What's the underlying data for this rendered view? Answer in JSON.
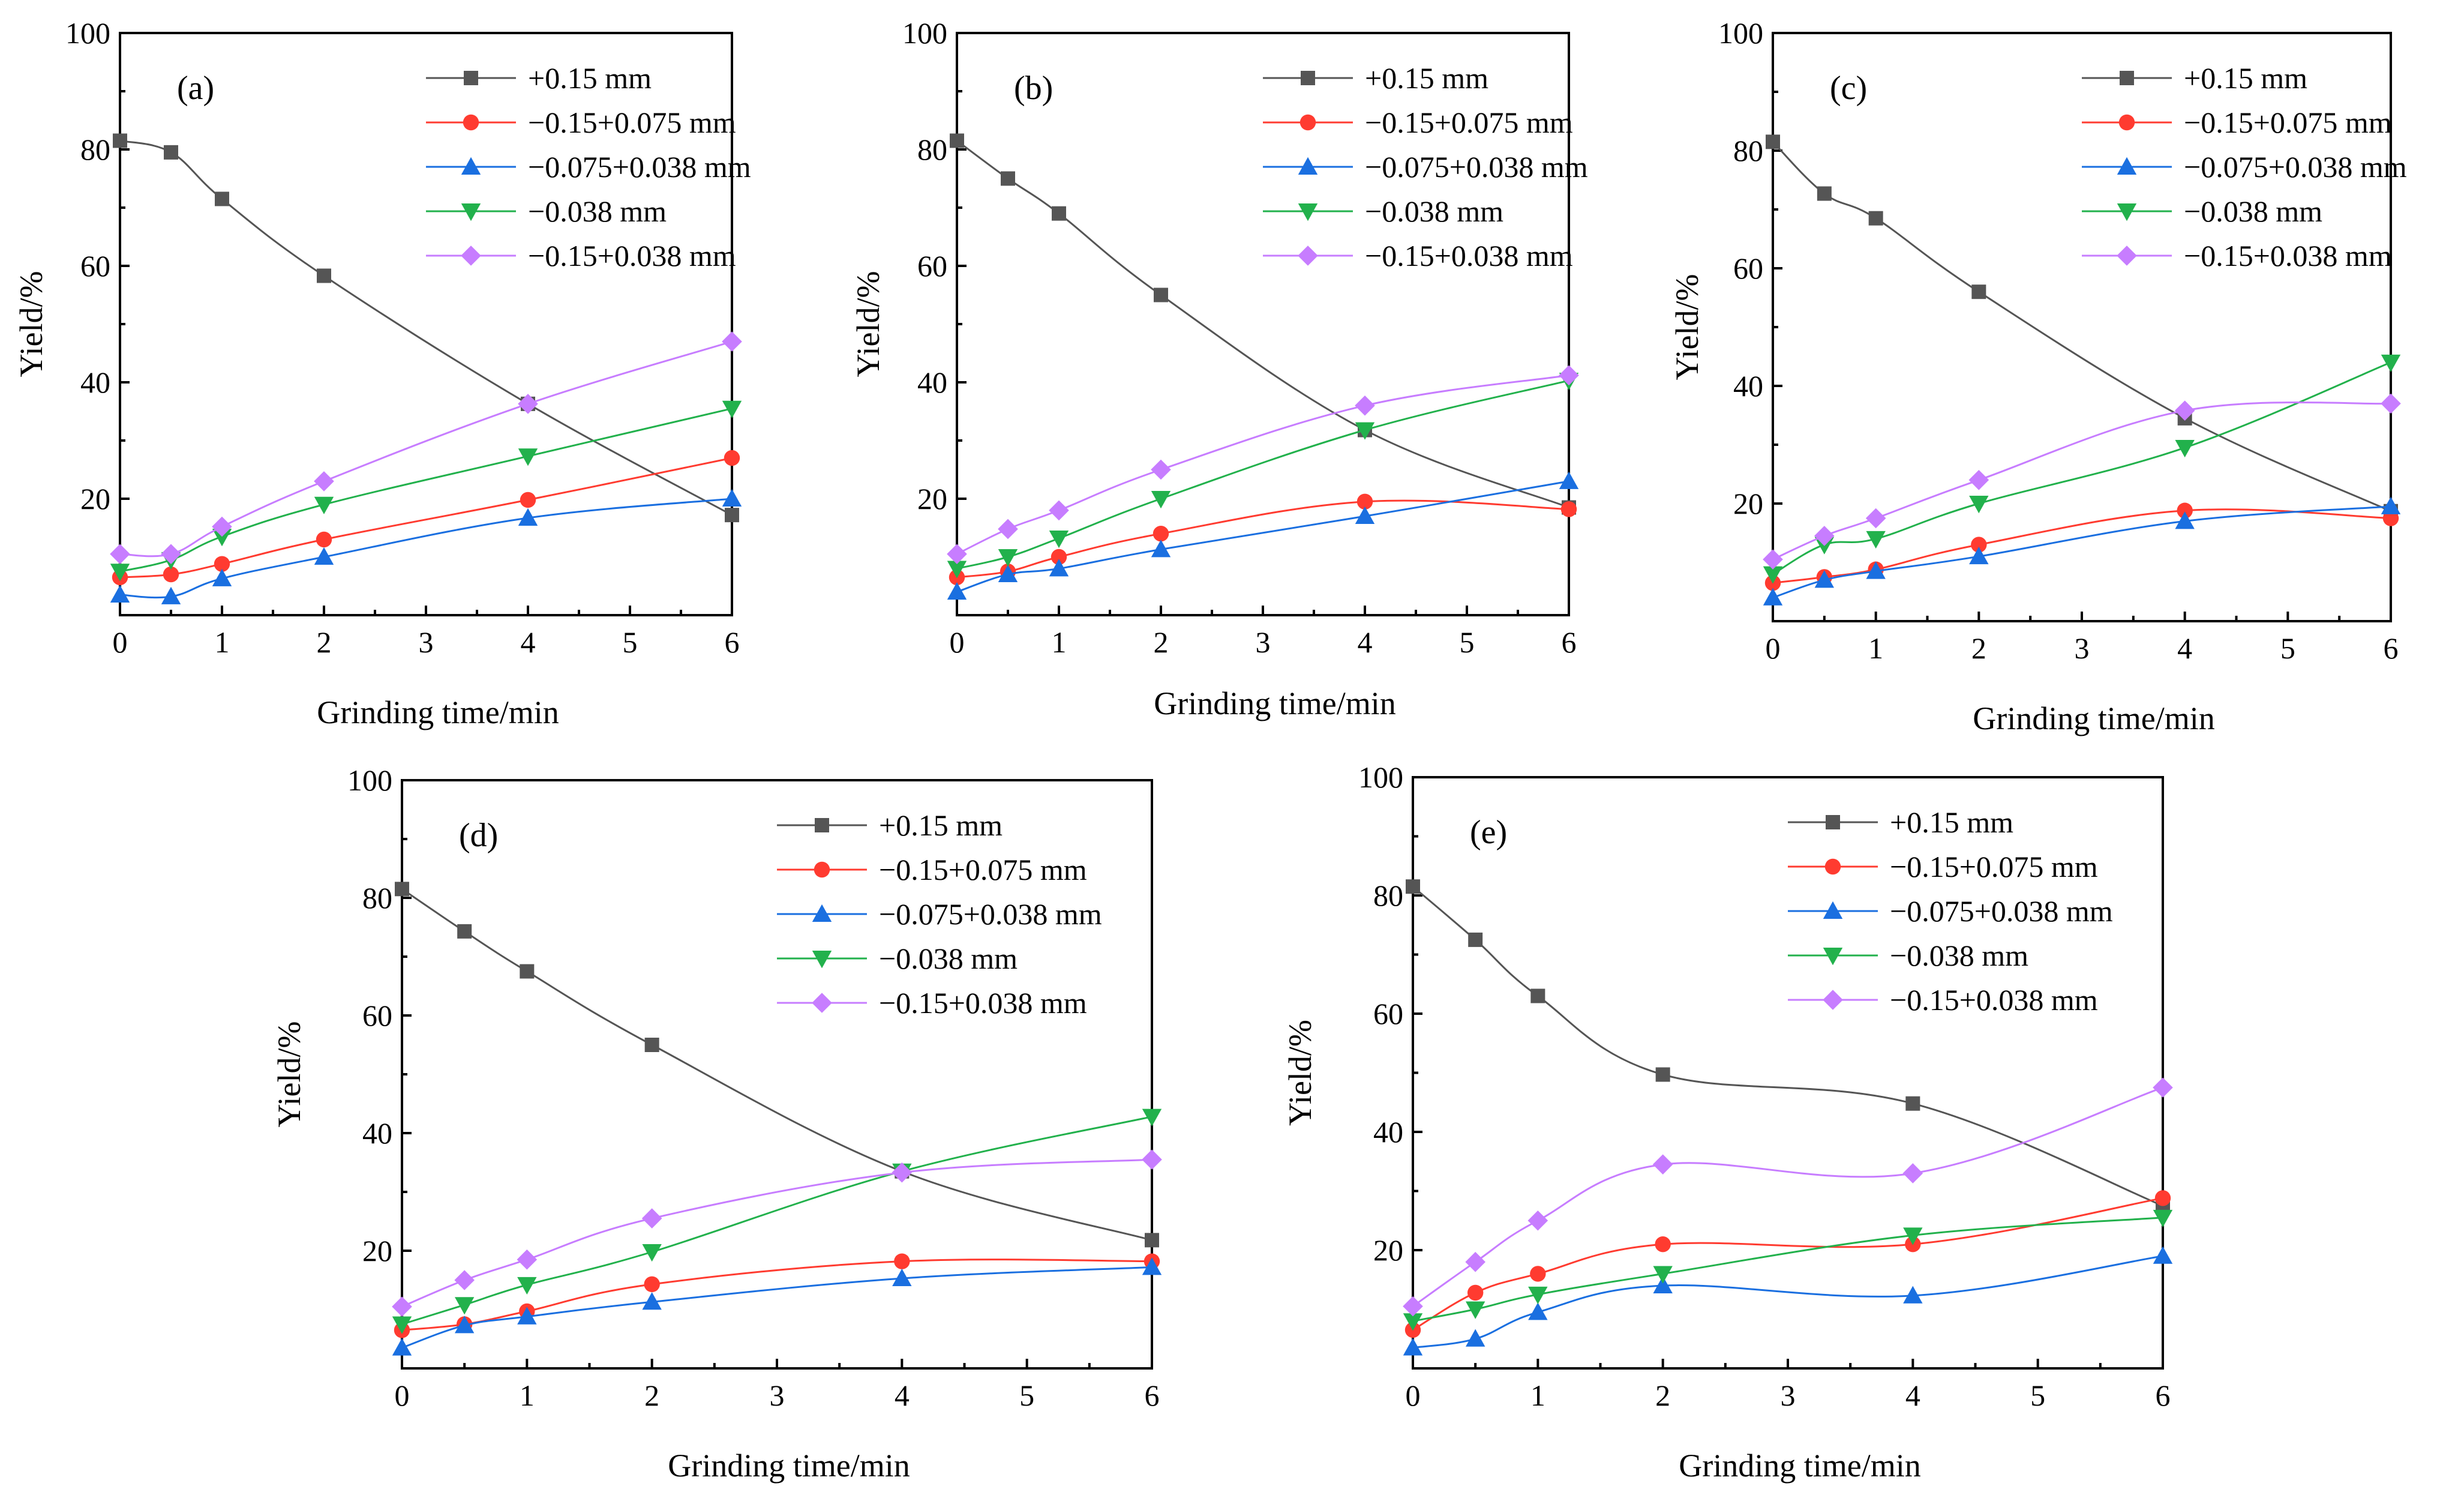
{
  "chart_data": [
    {
      "type": "line",
      "panel_label": "(a)",
      "xlabel": "Grinding time/min",
      "ylabel": "Yield/%",
      "xlim": [
        0,
        6
      ],
      "ylim": [
        0,
        100
      ],
      "xticks": [
        "0",
        "1",
        "2",
        "3",
        "4",
        "5",
        "6"
      ],
      "yticks": [
        "20",
        "40",
        "60",
        "80",
        "100"
      ],
      "x": [
        0,
        0.5,
        1,
        2,
        4,
        6
      ],
      "legend_position": "top-right",
      "series": [
        {
          "name": "+0.15 mm",
          "color": "#555555",
          "marker": "square",
          "values": [
            81.5,
            79.5,
            71.5,
            58.3,
            36.3,
            17.2
          ]
        },
        {
          "name": "−0.15+0.075 mm",
          "color": "#ff3b30",
          "marker": "circle",
          "values": [
            6.5,
            7.0,
            8.8,
            13.0,
            19.8,
            27.0
          ]
        },
        {
          "name": "−0.075+0.038 mm",
          "color": "#1a6fe0",
          "marker": "triangle-up",
          "values": [
            3.5,
            3.2,
            6.3,
            10.0,
            16.7,
            20.0
          ]
        },
        {
          "name": "−0.038 mm",
          "color": "#22b14c",
          "marker": "triangle-down",
          "values": [
            7.5,
            9.5,
            13.5,
            19.0,
            27.3,
            35.5
          ]
        },
        {
          "name": "−0.15+0.038 mm",
          "color": "#c77dff",
          "marker": "diamond",
          "values": [
            10.5,
            10.5,
            15.2,
            23.0,
            36.3,
            47.0
          ]
        }
      ]
    },
    {
      "type": "line",
      "panel_label": "(b)",
      "xlabel": "Grinding time/min",
      "ylabel": "Yield/%",
      "xlim": [
        0,
        6
      ],
      "ylim": [
        0,
        100
      ],
      "xticks": [
        "0",
        "1",
        "2",
        "3",
        "4",
        "5",
        "6"
      ],
      "yticks": [
        "20",
        "40",
        "60",
        "80",
        "100"
      ],
      "x": [
        0,
        0.5,
        1,
        2,
        4,
        6
      ],
      "legend_position": "top-right",
      "series": [
        {
          "name": "+0.15 mm",
          "color": "#555555",
          "marker": "square",
          "values": [
            81.5,
            75.0,
            69.0,
            55.0,
            31.8,
            18.5
          ]
        },
        {
          "name": "−0.15+0.075 mm",
          "color": "#ff3b30",
          "marker": "circle",
          "values": [
            6.5,
            7.5,
            10.0,
            14.0,
            19.5,
            18.2
          ]
        },
        {
          "name": "−0.075+0.038 mm",
          "color": "#1a6fe0",
          "marker": "triangle-up",
          "values": [
            4.0,
            7.0,
            8.0,
            11.3,
            17.0,
            23.0
          ]
        },
        {
          "name": "−0.038 mm",
          "color": "#22b14c",
          "marker": "triangle-down",
          "values": [
            8.0,
            10.0,
            13.2,
            20.0,
            31.8,
            40.3
          ]
        },
        {
          "name": "−0.15+0.038 mm",
          "color": "#c77dff",
          "marker": "diamond",
          "values": [
            10.5,
            14.8,
            18.0,
            25.0,
            36.0,
            41.2
          ]
        }
      ]
    },
    {
      "type": "line",
      "panel_label": "(c)",
      "xlabel": "Grinding time/min",
      "ylabel": "Yield/%",
      "xlim": [
        0,
        6
      ],
      "ylim": [
        0,
        100
      ],
      "xticks": [
        "0",
        "1",
        "2",
        "3",
        "4",
        "5",
        "6"
      ],
      "yticks": [
        "20",
        "40",
        "60",
        "80",
        "100"
      ],
      "x": [
        0,
        0.5,
        1,
        2,
        4,
        6
      ],
      "legend_position": "top-right",
      "series": [
        {
          "name": "+0.15 mm",
          "color": "#555555",
          "marker": "square",
          "values": [
            81.5,
            72.7,
            68.5,
            56.0,
            34.5,
            18.7
          ]
        },
        {
          "name": "−0.15+0.075 mm",
          "color": "#ff3b30",
          "marker": "circle",
          "values": [
            6.5,
            7.5,
            8.8,
            13.0,
            18.8,
            17.5
          ]
        },
        {
          "name": "−0.075+0.038 mm",
          "color": "#1a6fe0",
          "marker": "triangle-up",
          "values": [
            4.0,
            7.0,
            8.5,
            11.0,
            17.0,
            19.5
          ]
        },
        {
          "name": "−0.038 mm",
          "color": "#22b14c",
          "marker": "triangle-down",
          "values": [
            8.0,
            13.0,
            14.0,
            20.0,
            29.5,
            44.0
          ]
        },
        {
          "name": "−0.15+0.038 mm",
          "color": "#c77dff",
          "marker": "diamond",
          "values": [
            10.5,
            14.5,
            17.5,
            24.0,
            35.8,
            37.0
          ]
        }
      ]
    },
    {
      "type": "line",
      "panel_label": "(d)",
      "xlabel": "Grinding time/min",
      "ylabel": "Yield/%",
      "xlim": [
        0,
        6
      ],
      "ylim": [
        0,
        100
      ],
      "xticks": [
        "0",
        "1",
        "2",
        "3",
        "4",
        "5",
        "6"
      ],
      "yticks": [
        "20",
        "40",
        "60",
        "80",
        "100"
      ],
      "x": [
        0,
        0.5,
        1,
        2,
        4,
        6
      ],
      "legend_position": "top-right",
      "series": [
        {
          "name": "+0.15 mm",
          "color": "#555555",
          "marker": "square",
          "values": [
            81.5,
            74.3,
            67.5,
            55.0,
            33.5,
            21.8
          ]
        },
        {
          "name": "−0.15+0.075 mm",
          "color": "#ff3b30",
          "marker": "circle",
          "values": [
            6.5,
            7.5,
            9.7,
            14.3,
            18.2,
            18.2
          ]
        },
        {
          "name": "−0.075+0.038 mm",
          "color": "#1a6fe0",
          "marker": "triangle-up",
          "values": [
            3.5,
            7.3,
            8.8,
            11.3,
            15.3,
            17.2
          ]
        },
        {
          "name": "−0.038 mm",
          "color": "#22b14c",
          "marker": "triangle-down",
          "values": [
            7.5,
            10.8,
            14.2,
            19.8,
            33.5,
            42.8
          ]
        },
        {
          "name": "−0.15+0.038 mm",
          "color": "#c77dff",
          "marker": "diamond",
          "values": [
            10.5,
            15.0,
            18.5,
            25.5,
            33.3,
            35.5
          ]
        }
      ]
    },
    {
      "type": "line",
      "panel_label": "(e)",
      "xlabel": "Grinding time/min",
      "ylabel": "Yield/%",
      "xlim": [
        0,
        6
      ],
      "ylim": [
        0,
        100
      ],
      "xticks": [
        "0",
        "1",
        "2",
        "3",
        "4",
        "5",
        "6"
      ],
      "yticks": [
        "20",
        "40",
        "60",
        "80",
        "100"
      ],
      "x": [
        0,
        0.5,
        1,
        2,
        4,
        6
      ],
      "legend_position": "top-right",
      "series": [
        {
          "name": "+0.15 mm",
          "color": "#555555",
          "marker": "square",
          "values": [
            81.5,
            72.5,
            63.0,
            49.7,
            44.8,
            27.5
          ]
        },
        {
          "name": "−0.15+0.075 mm",
          "color": "#ff3b30",
          "marker": "circle",
          "values": [
            6.5,
            12.8,
            16.0,
            21.0,
            21.0,
            28.8
          ]
        },
        {
          "name": "−0.075+0.038 mm",
          "color": "#1a6fe0",
          "marker": "triangle-up",
          "values": [
            3.5,
            5.0,
            9.5,
            14.0,
            12.3,
            19.0
          ]
        },
        {
          "name": "−0.038 mm",
          "color": "#22b14c",
          "marker": "triangle-down",
          "values": [
            8.0,
            10.0,
            12.5,
            16.0,
            22.5,
            25.5
          ]
        },
        {
          "name": "−0.15+0.038 mm",
          "color": "#c77dff",
          "marker": "diamond",
          "values": [
            10.5,
            18.0,
            25.0,
            34.5,
            33.0,
            47.5
          ]
        }
      ]
    }
  ]
}
